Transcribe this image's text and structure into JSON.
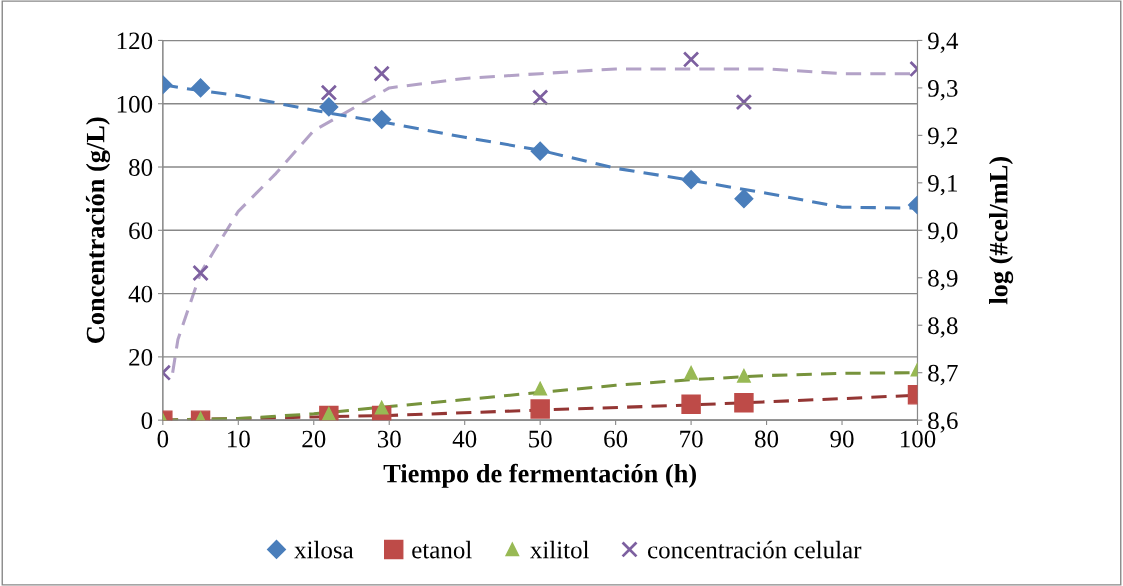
{
  "chart_data": {
    "type": "scatter",
    "xlabel": "Tiempo de fermentación (h)",
    "ylabel": "Concentración (g/L)",
    "y2label": "log (#cel/mL)",
    "x": [
      0,
      5,
      22,
      29,
      50,
      70,
      77,
      100
    ],
    "series": [
      {
        "name": "xilosa",
        "color": "#4a7ebb",
        "marker": "diamond",
        "values": [
          106,
          105,
          99,
          95,
          85,
          76,
          70,
          68
        ]
      },
      {
        "name": "etanol",
        "color": "#be4b48",
        "marker": "square",
        "values": [
          0,
          0,
          1.5,
          1.5,
          3.5,
          5,
          5.5,
          8
        ]
      },
      {
        "name": "xilitol",
        "color": "#98b954",
        "marker": "triangle",
        "values": [
          0,
          0.5,
          2,
          4,
          10,
          15,
          14,
          16
        ]
      },
      {
        "name": "concentración celular",
        "color": "#7d60a0",
        "marker": "cross",
        "axis": "y2",
        "values": [
          8.7,
          8.91,
          9.29,
          9.33,
          9.28,
          9.36,
          9.27,
          9.34
        ]
      },
      {
        "type": "line",
        "line_style": "dashed",
        "marker": "none",
        "color": "#4a7ebb",
        "x": [
          0,
          3,
          10,
          20,
          30,
          40,
          50,
          60,
          70,
          80,
          90,
          100
        ],
        "values": [
          106,
          104.8,
          102.6,
          97.9,
          93.8,
          89.4,
          85.3,
          79.6,
          75.8,
          71.7,
          67.3,
          67
        ]
      },
      {
        "type": "line",
        "line_style": "dashed",
        "marker": "none",
        "color": "#943634",
        "x": [
          0,
          20,
          30,
          50,
          70,
          80,
          90,
          100
        ],
        "values": [
          0,
          1,
          1.5,
          3.2,
          4.8,
          5.8,
          6.8,
          7.9
        ]
      },
      {
        "type": "line",
        "line_style": "dashed",
        "marker": "none",
        "color": "#77933c",
        "x": [
          0,
          10,
          20,
          30,
          40,
          50,
          60,
          70,
          80,
          90,
          100
        ],
        "values": [
          0,
          0.5,
          2,
          4.3,
          6.5,
          8.8,
          11,
          12.8,
          14.1,
          14.8,
          15
        ]
      },
      {
        "type": "line",
        "line_style": "dashed",
        "marker": "none",
        "color": "#b3a2c7",
        "axis": "y2",
        "x": [
          1.3,
          2,
          5,
          10,
          15,
          20,
          30,
          40,
          50,
          60,
          70,
          80,
          90,
          100
        ],
        "values": [
          8.7,
          8.77,
          8.91,
          9.04,
          9.12,
          9.21,
          9.3,
          9.32,
          9.33,
          9.34,
          9.34,
          9.34,
          9.33,
          9.33
        ]
      }
    ],
    "xlim": [
      0,
      100
    ],
    "xticks": [
      0,
      10,
      20,
      30,
      40,
      50,
      60,
      70,
      80,
      90,
      100
    ],
    "ylim": [
      0,
      120
    ],
    "yticks": [
      0,
      20,
      40,
      60,
      80,
      100,
      120
    ],
    "y2lim": [
      8.6,
      9.4
    ],
    "y2ticks": [
      {
        "value": 8.6,
        "label": "8,6"
      },
      {
        "value": 8.7,
        "label": "8,7"
      },
      {
        "value": 8.8,
        "label": "8,8"
      },
      {
        "value": 8.9,
        "label": "8,9"
      },
      {
        "value": 9.0,
        "label": "9,0"
      },
      {
        "value": 9.1,
        "label": "9,1"
      },
      {
        "value": 9.2,
        "label": "9,2"
      },
      {
        "value": 9.3,
        "label": "9,3"
      },
      {
        "value": 9.4,
        "label": "9,4"
      }
    ],
    "grid": "y",
    "legend": "bottom"
  }
}
